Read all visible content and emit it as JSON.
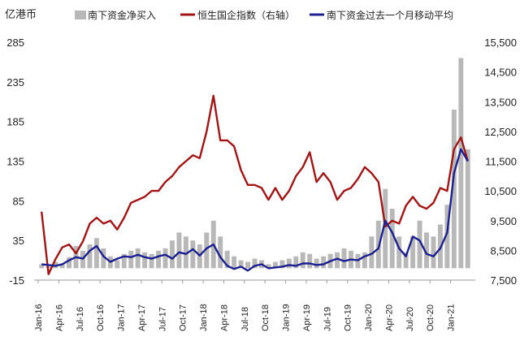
{
  "chart_data": {
    "type": "combo",
    "y_left_unit": "亿港币",
    "y_left_ticks": [
      -15,
      35,
      85,
      135,
      185,
      235,
      285
    ],
    "y_left_range": [
      -15,
      285
    ],
    "y_right_ticks": [
      "7,500",
      "8,500",
      "9,500",
      "10,500",
      "11,500",
      "12,500",
      "13,500",
      "14,500",
      "15,500"
    ],
    "y_right_range": [
      7500,
      15500
    ],
    "x_ticks": [
      "Jan-16",
      "Apr-16",
      "Jul-16",
      "Oct-16",
      "Jan-17",
      "Apr-17",
      "Jul-17",
      "Oct-17",
      "Jan-18",
      "Apr-18",
      "Jul-18",
      "Oct-18",
      "Jan-19",
      "Apr-19",
      "Jul-19",
      "Oct-19",
      "Jan-20",
      "Apr-20",
      "Jul-20",
      "Oct-20",
      "Jan-21"
    ],
    "legend": [
      "南下资金净买入",
      "恒生国企指数（右轴）",
      "南下资金过去一个月移动平均"
    ],
    "colors": {
      "bars": "#b8b8b8",
      "index": "#a31515",
      "ma": "#1b1f8f"
    },
    "series": [
      {
        "name": "南下资金净买入",
        "axis": "left",
        "kind": "bar",
        "x": [
          "2016-01",
          "2016-02",
          "2016-03",
          "2016-04",
          "2016-05",
          "2016-06",
          "2016-07",
          "2016-08",
          "2016-09",
          "2016-10",
          "2016-11",
          "2016-12",
          "2017-01",
          "2017-02",
          "2017-03",
          "2017-04",
          "2017-05",
          "2017-06",
          "2017-07",
          "2017-08",
          "2017-09",
          "2017-10",
          "2017-11",
          "2017-12",
          "2018-01",
          "2018-02",
          "2018-03",
          "2018-04",
          "2018-05",
          "2018-06",
          "2018-07",
          "2018-08",
          "2018-09",
          "2018-10",
          "2018-11",
          "2018-12",
          "2019-01",
          "2019-02",
          "2019-03",
          "2019-04",
          "2019-05",
          "2019-06",
          "2019-07",
          "2019-08",
          "2019-09",
          "2019-10",
          "2019-11",
          "2019-12",
          "2020-01",
          "2020-02",
          "2020-03",
          "2020-04",
          "2020-05",
          "2020-06",
          "2020-07",
          "2020-08",
          "2020-09",
          "2020-10",
          "2020-11",
          "2020-12",
          "2021-01",
          "2021-02",
          "2021-03"
        ],
        "values": [
          5,
          2,
          8,
          6,
          14,
          28,
          22,
          30,
          38,
          25,
          15,
          10,
          18,
          22,
          25,
          20,
          18,
          22,
          25,
          35,
          45,
          40,
          35,
          30,
          45,
          60,
          40,
          22,
          15,
          10,
          8,
          12,
          10,
          5,
          8,
          10,
          12,
          15,
          20,
          18,
          12,
          15,
          18,
          20,
          25,
          22,
          18,
          20,
          40,
          60,
          100,
          75,
          40,
          20,
          40,
          60,
          45,
          40,
          55,
          80,
          200,
          265,
          150
        ]
      },
      {
        "name": "恒生国企指数（右轴）",
        "axis": "right",
        "kind": "line",
        "x": [
          "2016-01",
          "2016-02",
          "2016-03",
          "2016-04",
          "2016-05",
          "2016-06",
          "2016-07",
          "2016-08",
          "2016-09",
          "2016-10",
          "2016-11",
          "2016-12",
          "2017-01",
          "2017-02",
          "2017-03",
          "2017-04",
          "2017-05",
          "2017-06",
          "2017-07",
          "2017-08",
          "2017-09",
          "2017-10",
          "2017-11",
          "2017-12",
          "2018-01",
          "2018-02",
          "2018-03",
          "2018-04",
          "2018-05",
          "2018-06",
          "2018-07",
          "2018-08",
          "2018-09",
          "2018-10",
          "2018-11",
          "2018-12",
          "2019-01",
          "2019-02",
          "2019-03",
          "2019-04",
          "2019-05",
          "2019-06",
          "2019-07",
          "2019-08",
          "2019-09",
          "2019-10",
          "2019-11",
          "2019-12",
          "2020-01",
          "2020-02",
          "2020-03",
          "2020-04",
          "2020-05",
          "2020-06",
          "2020-07",
          "2020-08",
          "2020-09",
          "2020-10",
          "2020-11",
          "2020-12",
          "2021-01",
          "2021-02",
          "2021-03"
        ],
        "values": [
          9800,
          7700,
          8200,
          8600,
          8700,
          8400,
          8800,
          9400,
          9600,
          9400,
          9500,
          9200,
          9600,
          10100,
          10200,
          10300,
          10500,
          10500,
          10800,
          11000,
          11300,
          11500,
          11700,
          11600,
          12500,
          13700,
          12200,
          12200,
          12000,
          11200,
          10700,
          10700,
          10600,
          10200,
          10600,
          10200,
          10500,
          11000,
          11300,
          11800,
          10800,
          11100,
          10800,
          10200,
          10500,
          10600,
          10900,
          11300,
          11100,
          10800,
          9300,
          9500,
          9400,
          10000,
          10300,
          10000,
          9900,
          10100,
          10600,
          10500,
          11900,
          12300,
          11500
        ]
      },
      {
        "name": "南下资金过去一个月移动平均",
        "axis": "left",
        "kind": "line",
        "x": [
          "2016-01",
          "2016-02",
          "2016-03",
          "2016-04",
          "2016-05",
          "2016-06",
          "2016-07",
          "2016-08",
          "2016-09",
          "2016-10",
          "2016-11",
          "2016-12",
          "2017-01",
          "2017-02",
          "2017-03",
          "2017-04",
          "2017-05",
          "2017-06",
          "2017-07",
          "2017-08",
          "2017-09",
          "2017-10",
          "2017-11",
          "2017-12",
          "2018-01",
          "2018-02",
          "2018-03",
          "2018-04",
          "2018-05",
          "2018-06",
          "2018-07",
          "2018-08",
          "2018-09",
          "2018-10",
          "2018-11",
          "2018-12",
          "2019-01",
          "2019-02",
          "2019-03",
          "2019-04",
          "2019-05",
          "2019-06",
          "2019-07",
          "2019-08",
          "2019-09",
          "2019-10",
          "2019-11",
          "2019-12",
          "2020-01",
          "2020-02",
          "2020-03",
          "2020-04",
          "2020-05",
          "2020-06",
          "2020-07",
          "2020-08",
          "2020-09",
          "2020-10",
          "2020-11",
          "2020-12",
          "2021-01",
          "2021-02",
          "2021-03"
        ],
        "values": [
          5,
          4,
          3,
          5,
          10,
          14,
          12,
          22,
          28,
          15,
          8,
          12,
          15,
          14,
          17,
          14,
          12,
          15,
          17,
          12,
          20,
          18,
          24,
          16,
          25,
          30,
          14,
          3,
          -1,
          2,
          -3,
          3,
          5,
          0,
          1,
          2,
          4,
          3,
          6,
          6,
          4,
          5,
          9,
          12,
          9,
          11,
          10,
          15,
          18,
          25,
          60,
          45,
          25,
          15,
          40,
          35,
          18,
          15,
          25,
          45,
          120,
          150,
          135
        ]
      }
    ]
  }
}
